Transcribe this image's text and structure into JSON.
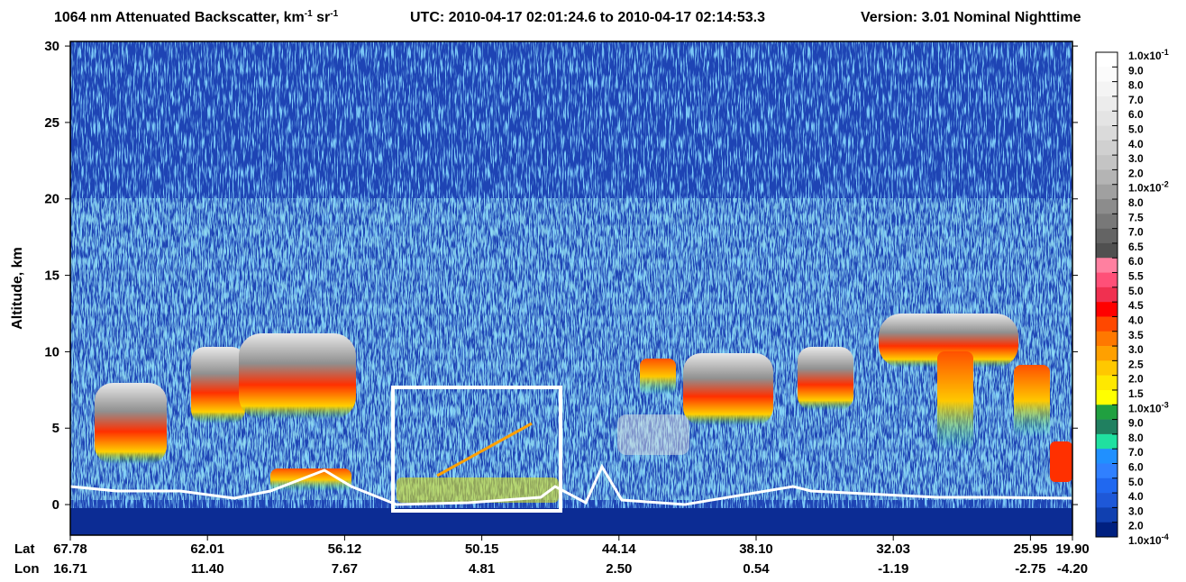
{
  "chart_data": {
    "type": "curtain",
    "title": {
      "main": "1064 nm Attenuated Backscatter, km",
      "sup1": "-1",
      "unit2": " sr",
      "sup2": "-1"
    },
    "utc": "UTC:  2010-04-17 02:01:24.6  to  2010-04-17 02:14:53.3",
    "version": "Version: 3.01  Nominal  Nighttime",
    "ylabel": "Altitude, km",
    "ylim": [
      -2,
      30.3
    ],
    "yticks": [
      0,
      5,
      10,
      15,
      20,
      25,
      30
    ],
    "lat_label": "Lat",
    "lon_label": "Lon",
    "lat_ticks": [
      "67.78",
      "62.01",
      "56.12",
      "50.15",
      "44.14",
      "38.10",
      "32.03",
      "25.95",
      "19.90"
    ],
    "lon_ticks": [
      "16.71",
      "11.40",
      "7.67",
      "4.81",
      "2.50",
      "0.54",
      "-1.19",
      "-2.75",
      "-4.20"
    ],
    "colorbar": {
      "labels": [
        {
          "text": "1.0x10",
          "sup": "-1"
        },
        "9.0",
        "8.0",
        "7.0",
        "6.0",
        "5.0",
        "4.0",
        "3.0",
        "2.0",
        {
          "text": "1.0x10",
          "sup": "-2"
        },
        "8.0",
        "7.5",
        "7.0",
        "6.5",
        "6.0",
        "5.5",
        "5.0",
        "4.5",
        "4.0",
        "3.5",
        "3.0",
        "2.5",
        "2.0",
        "1.5",
        {
          "text": "1.0x10",
          "sup": "-3"
        },
        "9.0",
        "8.0",
        "7.0",
        "6.0",
        "5.0",
        "4.0",
        "3.0",
        "2.0",
        {
          "text": "1.0x10",
          "sup": "-4"
        }
      ],
      "colors": [
        "#ffffff",
        "#fbfbfb",
        "#f4f4f4",
        "#ececec",
        "#e4e4e4",
        "#dadada",
        "#d0d0d0",
        "#c4c4c4",
        "#b4b4b4",
        "#a0a0a0",
        "#8c8c8c",
        "#787878",
        "#646464",
        "#505050",
        "#ff80a0",
        "#ff5078",
        "#f03050",
        "#ff0000",
        "#ff4800",
        "#ff7800",
        "#ffa000",
        "#ffc800",
        "#ffe800",
        "#ffff00",
        "#20a040",
        "#208060",
        "#20e0a0",
        "#2090ff",
        "#3080ff",
        "#2068f0",
        "#1e58d8",
        "#1040b0",
        "#002080"
      ]
    }
  }
}
